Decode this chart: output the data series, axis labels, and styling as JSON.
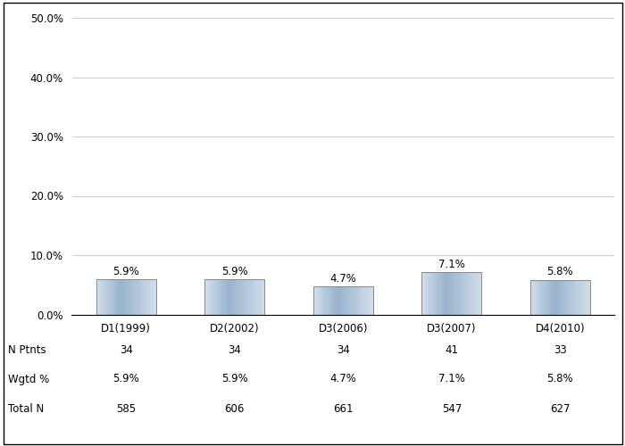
{
  "categories": [
    "D1(1999)",
    "D2(2002)",
    "D3(2006)",
    "D3(2007)",
    "D4(2010)"
  ],
  "values": [
    5.9,
    5.9,
    4.7,
    7.1,
    5.8
  ],
  "bar_labels": [
    "5.9%",
    "5.9%",
    "4.7%",
    "7.1%",
    "5.8%"
  ],
  "n_ptnts": [
    "34",
    "34",
    "34",
    "41",
    "33"
  ],
  "wgtd_pct": [
    "5.9%",
    "5.9%",
    "4.7%",
    "7.1%",
    "5.8%"
  ],
  "total_n": [
    "585",
    "606",
    "661",
    "547",
    "627"
  ],
  "ylim": [
    0,
    50
  ],
  "yticks": [
    0,
    10,
    20,
    30,
    40,
    50
  ],
  "ytick_labels": [
    "0.0%",
    "10.0%",
    "20.0%",
    "30.0%",
    "40.0%",
    "50.0%"
  ],
  "bar_edge_color": "#888888",
  "background_color": "#ffffff",
  "grid_color": "#d0d0d0",
  "row_labels": [
    "N Ptnts",
    "Wgtd %",
    "Total N"
  ],
  "label_fontsize": 8.5,
  "tick_fontsize": 8.5,
  "table_fontsize": 8.5
}
